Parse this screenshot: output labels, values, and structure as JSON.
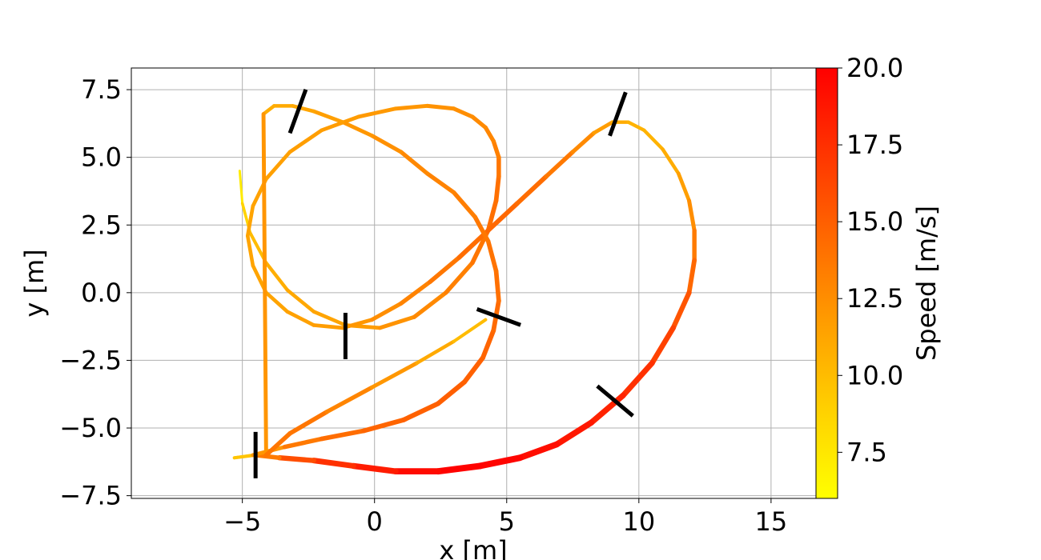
{
  "chart_data": {
    "type": "line",
    "title": "",
    "xlabel": "x [m]",
    "ylabel": "y [m]",
    "xlim": [
      -9.2,
      16.7
    ],
    "ylim": [
      -7.6,
      8.3
    ],
    "grid": true,
    "x_ticks": [
      -5,
      0,
      5,
      10,
      15
    ],
    "x_tick_labels": [
      "−5",
      "0",
      "5",
      "10",
      "15"
    ],
    "y_ticks": [
      -7.5,
      -5.0,
      -2.5,
      0.0,
      2.5,
      5.0,
      7.5
    ],
    "y_tick_labels": [
      "−7.5",
      "−5.0",
      "−2.5",
      "0.0",
      "2.5",
      "5.0",
      "7.5"
    ],
    "colorbar": {
      "label": "Speed [m/s]",
      "range": [
        6.0,
        20.0
      ],
      "ticks": [
        7.5,
        10.0,
        12.5,
        15.0,
        17.5,
        20.0
      ],
      "tick_labels": [
        "7.5",
        "10.0",
        "12.5",
        "15.0",
        "17.5",
        "20.0"
      ],
      "colormap": [
        "#ffff00",
        "#ffd200",
        "#ff9f00",
        "#ff6a00",
        "#ff3500",
        "#ff0000"
      ]
    },
    "trajectory": {
      "name": "",
      "x": [
        -5.1,
        -5.0,
        -4.7,
        -4.1,
        -3.3,
        -2.3,
        -1.1,
        0.2,
        1.5,
        2.7,
        3.7,
        4.3,
        4.6,
        4.7,
        4.7,
        4.5,
        4.2,
        3.7,
        3.0,
        2.0,
        0.8,
        -0.6,
        -2.0,
        -3.2,
        -4.1,
        -4.6,
        -4.8,
        -4.6,
        -4.1,
        -3.3,
        -2.3,
        -1.2,
        -0.1,
        1.0,
        2.1,
        3.2,
        4.3,
        5.4,
        6.5,
        7.5,
        8.3,
        9.0,
        9.6,
        10.2,
        10.9,
        11.5,
        11.9,
        12.1,
        12.1,
        11.9,
        11.3,
        10.5,
        9.4,
        8.2,
        6.9,
        5.5,
        4.0,
        2.4,
        0.8,
        -0.8,
        -2.3,
        -3.6,
        -4.5,
        -5.3,
        -4.6,
        -3.4,
        -2.0,
        -0.4,
        1.1,
        2.4,
        3.4,
        4.1,
        4.5,
        4.7,
        4.6,
        4.3,
        3.8,
        3.0,
        2.0,
        1.0,
        -0.1,
        -1.2,
        -2.3,
        -3.1,
        -3.8,
        -4.2,
        -4.1,
        -3.2,
        -1.8,
        -0.1,
        1.6,
        3.0,
        4.2
      ],
      "y": [
        4.5,
        3.3,
        2.2,
        1.1,
        0.1,
        -0.7,
        -1.2,
        -1.3,
        -0.9,
        0.0,
        1.1,
        2.3,
        3.4,
        4.3,
        5.0,
        5.6,
        6.1,
        6.5,
        6.8,
        6.9,
        6.8,
        6.5,
        6.0,
        5.2,
        4.2,
        3.2,
        2.1,
        1.0,
        0.0,
        -0.7,
        -1.2,
        -1.3,
        -1.0,
        -0.4,
        0.4,
        1.3,
        2.3,
        3.3,
        4.3,
        5.2,
        5.9,
        6.3,
        6.3,
        6.0,
        5.3,
        4.4,
        3.4,
        2.3,
        1.2,
        0.0,
        -1.3,
        -2.6,
        -3.8,
        -4.8,
        -5.6,
        -6.1,
        -6.4,
        -6.6,
        -6.6,
        -6.4,
        -6.2,
        -6.1,
        -6.0,
        -6.1,
        -6.0,
        -5.7,
        -5.4,
        -5.1,
        -4.7,
        -4.1,
        -3.3,
        -2.4,
        -1.4,
        -0.3,
        0.8,
        1.9,
        2.8,
        3.7,
        4.4,
        5.2,
        5.8,
        6.3,
        6.7,
        6.9,
        6.9,
        6.6,
        -6.0,
        -5.2,
        -4.4,
        -3.5,
        -2.6,
        -1.8,
        -1.0
      ],
      "speed": [
        6.5,
        8.0,
        9.5,
        10.5,
        11.0,
        11.2,
        11.5,
        12.0,
        12.5,
        13.0,
        13.5,
        14.0,
        14.2,
        14.0,
        13.5,
        13.0,
        12.8,
        12.6,
        12.4,
        12.2,
        12.0,
        11.8,
        11.7,
        11.6,
        11.5,
        11.4,
        11.3,
        11.3,
        11.3,
        11.4,
        11.6,
        11.8,
        12.2,
        12.8,
        13.4,
        14.0,
        14.5,
        14.5,
        14.0,
        13.2,
        12.2,
        11.2,
        10.6,
        10.4,
        10.6,
        11.2,
        12.0,
        13.0,
        14.0,
        15.0,
        16.0,
        17.0,
        17.8,
        18.5,
        19.0,
        19.5,
        20.0,
        19.8,
        19.0,
        18.0,
        16.8,
        15.0,
        12.0,
        8.0,
        11.0,
        13.2,
        14.0,
        14.5,
        14.8,
        15.0,
        15.0,
        14.8,
        14.5,
        14.2,
        14.0,
        13.8,
        13.5,
        13.2,
        13.0,
        12.6,
        12.2,
        11.8,
        11.4,
        11.1,
        10.9,
        10.8,
        13.5,
        14.0,
        13.5,
        12.5,
        11.5,
        10.5,
        9.5
      ]
    },
    "markers": [
      {
        "x": -4.5,
        "y": -6.0,
        "angle_deg": 90
      },
      {
        "x": -1.1,
        "y": -1.6,
        "angle_deg": 90
      },
      {
        "x": -2.9,
        "y": 6.7,
        "angle_deg": 70
      },
      {
        "x": 4.7,
        "y": -0.9,
        "angle_deg": -20
      },
      {
        "x": 9.2,
        "y": 6.6,
        "angle_deg": 70
      },
      {
        "x": 9.1,
        "y": -4.0,
        "angle_deg": -40
      }
    ]
  }
}
